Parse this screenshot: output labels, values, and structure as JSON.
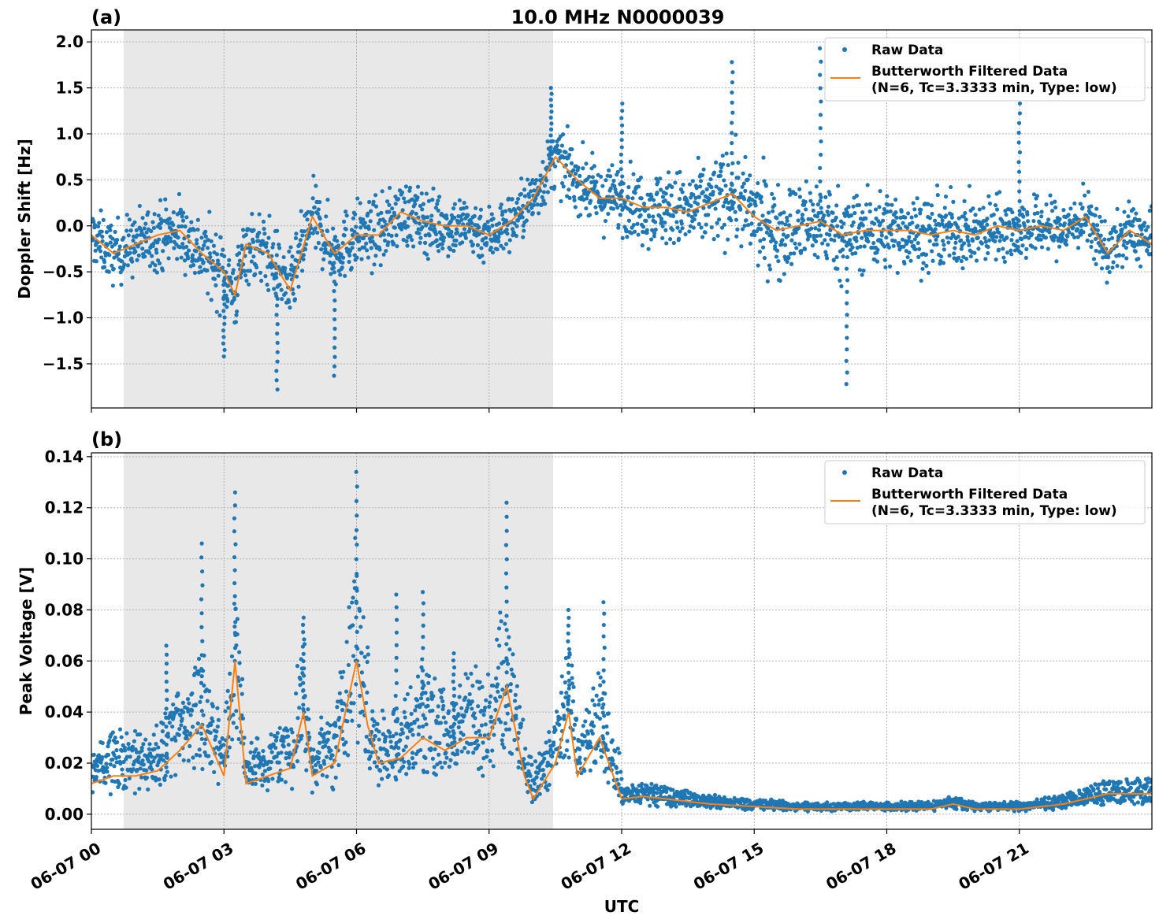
{
  "chart_data": [
    {
      "type": "scatter",
      "panel_label": "(a)",
      "title": "10.0 MHz N0000039",
      "ylabel": "Doppler Shift [Hz]",
      "xlabel": "",
      "xlim_hours": [
        0,
        24
      ],
      "ylim": [
        -1.98,
        2.13
      ],
      "yticks": [
        -1.5,
        -1.0,
        -0.5,
        0.0,
        0.5,
        1.0,
        1.5,
        2.0
      ],
      "ytick_labels": [
        "−1.5",
        "−1.0",
        "−0.5",
        "0.0",
        "0.5",
        "1.0",
        "1.5",
        "2.0"
      ],
      "grid": true,
      "shaded_interval_hours": [
        0.73,
        10.45
      ],
      "legend": {
        "placement": "top-right",
        "entries": [
          "Raw Data",
          "Butterworth Filtered Data\n(N=6, Tc=3.3333 min, Type: low)"
        ]
      },
      "series": [
        {
          "name": "Raw Data",
          "kind": "scatter",
          "color": "#1f77b4",
          "spread": {
            "hours": [
              0,
              3,
              10,
              12,
              15,
              22,
              24
            ],
            "half_width": [
              0.3,
              0.4,
              0.3,
              0.35,
              0.5,
              0.3,
              0.3
            ]
          },
          "extremes": [
            {
              "x": 10.4,
              "y": 1.5
            },
            {
              "x": 14.5,
              "y": 1.78
            },
            {
              "x": 17.1,
              "y": -1.72
            },
            {
              "x": 4.2,
              "y": -1.78
            },
            {
              "x": 5.5,
              "y": -1.63
            },
            {
              "x": 3.0,
              "y": -1.42
            },
            {
              "x": 12.0,
              "y": 1.33
            },
            {
              "x": 16.5,
              "y": 1.93
            },
            {
              "x": 21.0,
              "y": 1.33
            }
          ]
        },
        {
          "name": "Butterworth Filtered Data (N=6, Tc=3.3333 min, Type: low)",
          "kind": "line",
          "color": "#ff7f0e",
          "x": [
            0,
            0.5,
            1,
            1.5,
            2,
            2.5,
            3,
            3.25,
            3.5,
            4,
            4.5,
            5,
            5.5,
            6,
            6.5,
            7,
            7.5,
            8,
            8.5,
            9,
            9.5,
            10,
            10.5,
            11,
            11.5,
            12,
            12.5,
            13,
            13.5,
            14,
            14.5,
            15,
            15.5,
            16,
            16.5,
            17,
            17.5,
            18,
            18.5,
            19,
            19.5,
            20,
            20.5,
            21,
            21.5,
            22,
            22.5,
            23,
            23.5,
            24
          ],
          "y": [
            -0.1,
            -0.3,
            -0.2,
            -0.1,
            -0.05,
            -0.3,
            -0.5,
            -0.75,
            -0.2,
            -0.3,
            -0.7,
            0.1,
            -0.3,
            -0.1,
            -0.1,
            0.15,
            0.05,
            0.0,
            0.0,
            -0.1,
            0.05,
            0.3,
            0.75,
            0.5,
            0.3,
            0.3,
            0.2,
            0.2,
            0.15,
            0.25,
            0.35,
            0.1,
            -0.05,
            0.0,
            0.05,
            -0.1,
            -0.05,
            -0.05,
            -0.05,
            -0.1,
            -0.05,
            -0.1,
            0.0,
            -0.05,
            0.0,
            -0.05,
            0.1,
            -0.3,
            -0.05,
            -0.2
          ]
        }
      ]
    },
    {
      "type": "scatter",
      "panel_label": "(b)",
      "title": "",
      "ylabel": "Peak Voltage [V]",
      "xlabel": "UTC",
      "xlim_hours": [
        0,
        24
      ],
      "ylim": [
        -0.0059,
        0.1415
      ],
      "yticks": [
        0.0,
        0.02,
        0.04,
        0.06,
        0.08,
        0.1,
        0.12,
        0.14
      ],
      "ytick_labels": [
        "0.00",
        "0.02",
        "0.04",
        "0.06",
        "0.08",
        "0.10",
        "0.12",
        "0.14"
      ],
      "xticks_hours": [
        0,
        3,
        6,
        9,
        12,
        15,
        18,
        21
      ],
      "xtick_labels": [
        "06-07 00",
        "06-07 03",
        "06-07 06",
        "06-07 09",
        "06-07 12",
        "06-07 15",
        "06-07 18",
        "06-07 21"
      ],
      "grid": true,
      "shaded_interval_hours": [
        0.73,
        10.45
      ],
      "legend": {
        "placement": "top-right",
        "entries": [
          "Raw Data",
          "Butterworth Filtered Data\n(N=6, Tc=3.3333 min, Type: low)"
        ]
      },
      "series": [
        {
          "name": "Raw Data",
          "kind": "scatter",
          "color": "#1f77b4",
          "peaks": [
            {
              "x": 2.5,
              "y": 0.106
            },
            {
              "x": 3.25,
              "y": 0.126
            },
            {
              "x": 4.8,
              "y": 0.077
            },
            {
              "x": 6.0,
              "y": 0.134
            },
            {
              "x": 6.9,
              "y": 0.086
            },
            {
              "x": 7.5,
              "y": 0.087
            },
            {
              "x": 9.4,
              "y": 0.122
            },
            {
              "x": 10.8,
              "y": 0.08
            },
            {
              "x": 11.6,
              "y": 0.083
            },
            {
              "x": 1.7,
              "y": 0.066
            },
            {
              "x": 8.2,
              "y": 0.063
            }
          ]
        },
        {
          "name": "Butterworth Filtered Data (N=6, Tc=3.3333 min, Type: low)",
          "kind": "line",
          "color": "#ff7f0e",
          "x": [
            0,
            0.5,
            1,
            1.5,
            2,
            2.5,
            3,
            3.25,
            3.5,
            4,
            4.5,
            4.8,
            5,
            5.5,
            6,
            6.25,
            6.5,
            7,
            7.5,
            8,
            8.5,
            9,
            9.4,
            9.8,
            10,
            10.5,
            10.8,
            11,
            11.5,
            12,
            12.5,
            13,
            13.5,
            14,
            15,
            16,
            17,
            18,
            19,
            19.5,
            20,
            21,
            22,
            23,
            24
          ],
          "y": [
            0.012,
            0.015,
            0.015,
            0.017,
            0.025,
            0.035,
            0.015,
            0.06,
            0.012,
            0.015,
            0.018,
            0.04,
            0.015,
            0.02,
            0.06,
            0.035,
            0.02,
            0.022,
            0.03,
            0.025,
            0.03,
            0.03,
            0.05,
            0.015,
            0.006,
            0.02,
            0.04,
            0.015,
            0.03,
            0.006,
            0.007,
            0.006,
            0.005,
            0.004,
            0.003,
            0.002,
            0.002,
            0.002,
            0.002,
            0.004,
            0.002,
            0.002,
            0.004,
            0.008,
            0.008
          ]
        }
      ]
    }
  ]
}
